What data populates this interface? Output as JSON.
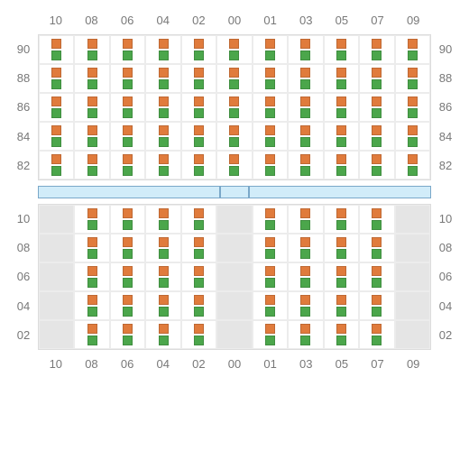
{
  "colors": {
    "text": "#787878",
    "gridBorder": "#dcdcdc",
    "cellBorder": "#ececec",
    "emptyBg": "#e5e5e5",
    "dividerFill": "#d1ecf9",
    "dividerBorder": "#7aa8c9",
    "square1": "#e07b3c",
    "square2": "#4ba64b",
    "background": "#ffffff"
  },
  "columnHeaders": [
    "10",
    "08",
    "06",
    "04",
    "02",
    "00",
    "01",
    "03",
    "05",
    "07",
    "09"
  ],
  "topSection": {
    "rowLabels": [
      "90",
      "88",
      "86",
      "84",
      "82"
    ],
    "emptyCells": []
  },
  "bottomSection": {
    "rowLabels": [
      "10",
      "08",
      "06",
      "04",
      "02"
    ],
    "emptyCells": [
      [
        0,
        0
      ],
      [
        0,
        5
      ],
      [
        0,
        10
      ],
      [
        1,
        0
      ],
      [
        1,
        5
      ],
      [
        1,
        10
      ],
      [
        2,
        0
      ],
      [
        2,
        5
      ],
      [
        2,
        10
      ],
      [
        3,
        0
      ],
      [
        3,
        5
      ],
      [
        3,
        10
      ],
      [
        4,
        0
      ],
      [
        4,
        5
      ],
      [
        4,
        10
      ]
    ]
  },
  "layout": {
    "rows": 5,
    "cols": 11,
    "squareSize": 11,
    "fontSize": 13
  }
}
